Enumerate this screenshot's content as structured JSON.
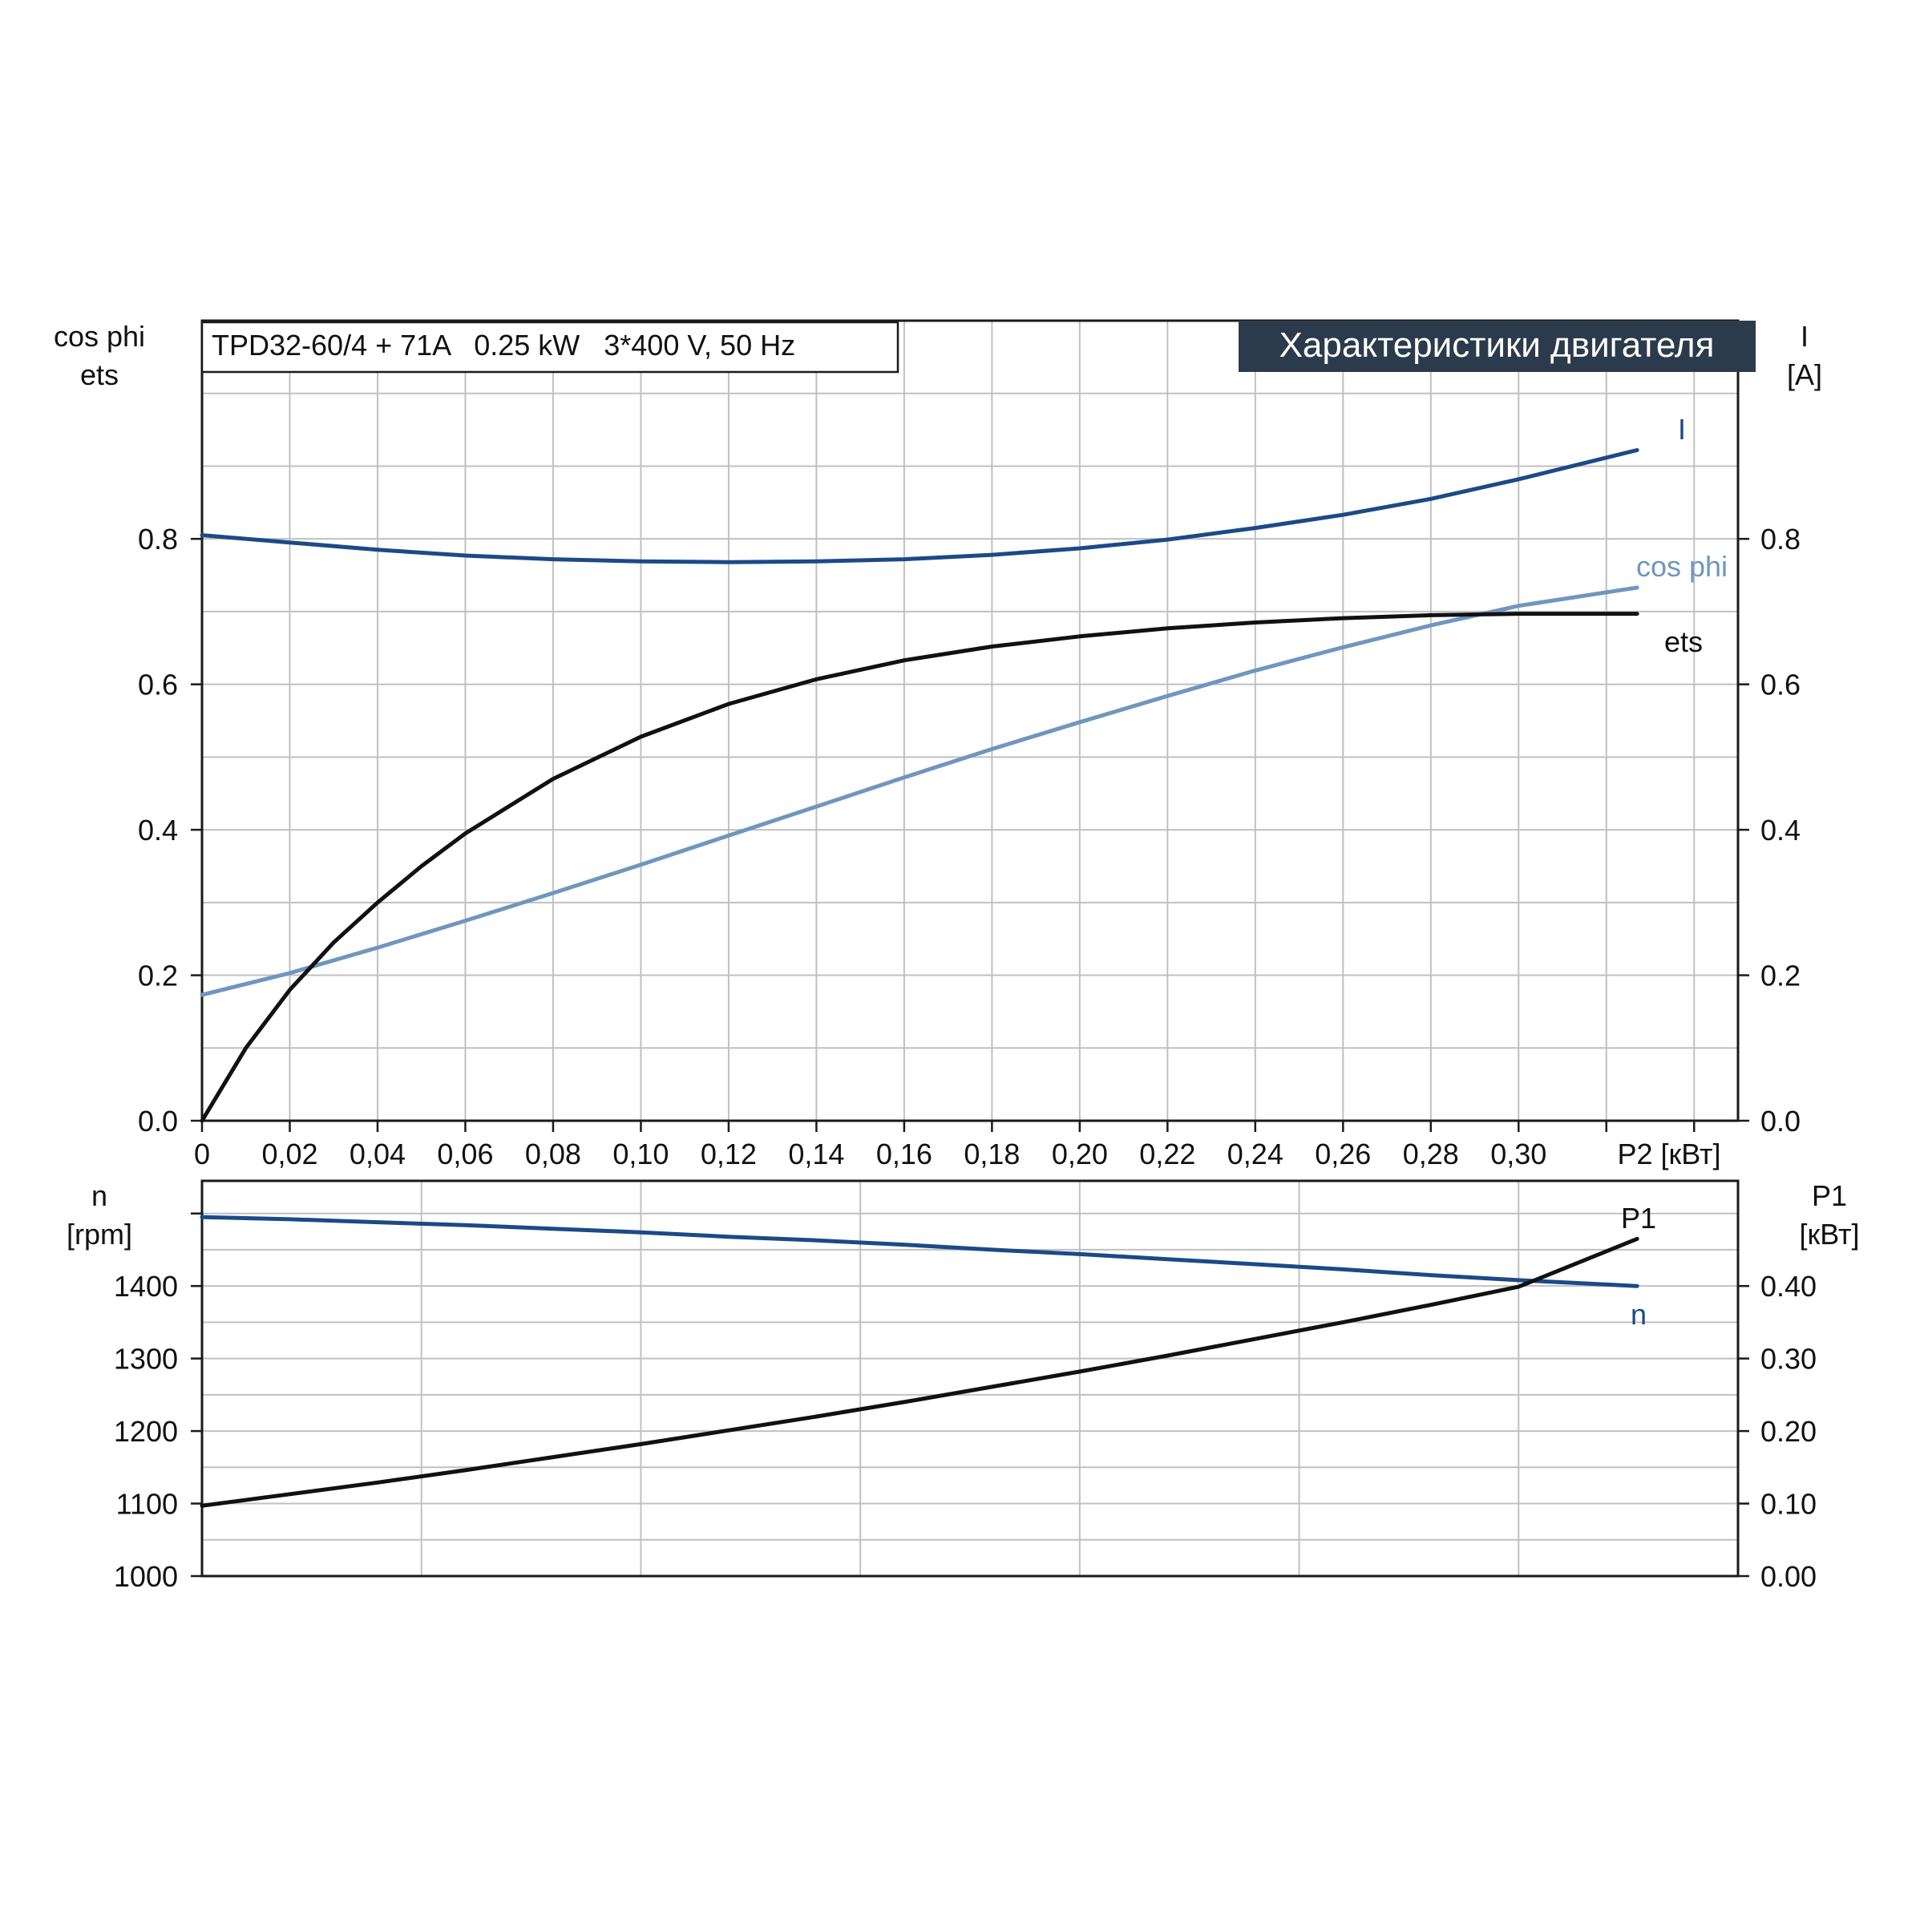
{
  "header": {
    "model_text": "TPD32-60/4 + 71A   0.25 kW   3*400 V, 50 Hz",
    "section_title": "Характеристики двигателя"
  },
  "colors": {
    "grid": "#c0c0c0",
    "frame": "#1a1a1a",
    "current": "#1b4a86",
    "cos_phi": "#6f96c0",
    "eta": "#111111",
    "speed": "#1b4a86",
    "p1": "#111111",
    "title_bg": "#2c3b4c",
    "title_fg": "#ffffff"
  },
  "chart_data": [
    {
      "type": "line",
      "name": "motor-characteristics-top",
      "x_ticks": [
        "0",
        "0,02",
        "0,04",
        "0,06",
        "0,08",
        "0,10",
        "0,12",
        "0,14",
        "0,16",
        "0,18",
        "0,20",
        "0,22",
        "0,24",
        "0,26",
        "0,28",
        "0,30"
      ],
      "x_tick_values": [
        0,
        0.02,
        0.04,
        0.06,
        0.08,
        0.1,
        0.12,
        0.14,
        0.16,
        0.18,
        0.2,
        0.22,
        0.24,
        0.26,
        0.28,
        0.3
      ],
      "xlabel": "P2 [кВт]",
      "xlim": [
        0,
        0.35
      ],
      "left_axis_label": [
        "cos phi",
        "ets"
      ],
      "right_axis_label": [
        "I",
        "[A]"
      ],
      "y_ticks": [
        "0.0",
        "0.2",
        "0.4",
        "0.6",
        "0.8"
      ],
      "y_tick_values": [
        0,
        0.2,
        0.4,
        0.6,
        0.8
      ],
      "ylim": [
        0,
        1.1
      ],
      "grid": true,
      "series": [
        {
          "name": "I",
          "color_key": "current",
          "x": [
            0,
            0.02,
            0.04,
            0.06,
            0.08,
            0.1,
            0.12,
            0.14,
            0.16,
            0.18,
            0.2,
            0.22,
            0.24,
            0.26,
            0.28,
            0.3,
            0.327
          ],
          "y": [
            0.805,
            0.795,
            0.785,
            0.777,
            0.772,
            0.769,
            0.768,
            0.769,
            0.772,
            0.778,
            0.787,
            0.799,
            0.815,
            0.833,
            0.855,
            0.882,
            0.922
          ]
        },
        {
          "name": "cos phi",
          "color_key": "cos_phi",
          "x": [
            0,
            0.02,
            0.04,
            0.06,
            0.08,
            0.1,
            0.12,
            0.14,
            0.16,
            0.18,
            0.2,
            0.22,
            0.24,
            0.26,
            0.28,
            0.3,
            0.327
          ],
          "y": [
            0.173,
            0.203,
            0.238,
            0.275,
            0.313,
            0.352,
            0.392,
            0.432,
            0.472,
            0.511,
            0.548,
            0.584,
            0.619,
            0.651,
            0.681,
            0.708,
            0.733
          ]
        },
        {
          "name": "ets",
          "color_key": "eta",
          "x": [
            0,
            0.01,
            0.02,
            0.03,
            0.04,
            0.05,
            0.06,
            0.08,
            0.1,
            0.12,
            0.14,
            0.16,
            0.18,
            0.2,
            0.22,
            0.24,
            0.26,
            0.28,
            0.3,
            0.327
          ],
          "y": [
            0,
            0.1,
            0.18,
            0.245,
            0.3,
            0.35,
            0.395,
            0.47,
            0.528,
            0.573,
            0.607,
            0.633,
            0.652,
            0.666,
            0.677,
            0.685,
            0.691,
            0.695,
            0.697,
            0.697
          ]
        }
      ]
    },
    {
      "type": "line",
      "name": "speed-and-input-power-bottom",
      "xlim": [
        0,
        0.35
      ],
      "left_axis_label": [
        "n",
        "[rpm]"
      ],
      "right_axis_label": [
        "P1",
        "[кВт]"
      ],
      "y_left_ticks": [
        "1000",
        "1100",
        "1200",
        "1300",
        "1400"
      ],
      "y_left_tick_values": [
        1000,
        1100,
        1200,
        1300,
        1400
      ],
      "y_left_lim": [
        1000,
        1545
      ],
      "y_right_ticks": [
        "0.00",
        "0.10",
        "0.20",
        "0.30",
        "0.40"
      ],
      "y_right_tick_values": [
        0,
        0.1,
        0.2,
        0.3,
        0.4
      ],
      "y_right_lim": [
        0,
        0.545
      ],
      "grid": true,
      "series": [
        {
          "name": "n",
          "color_key": "speed",
          "axis": "left",
          "x": [
            0,
            0.02,
            0.04,
            0.06,
            0.08,
            0.1,
            0.12,
            0.14,
            0.16,
            0.18,
            0.2,
            0.22,
            0.24,
            0.26,
            0.28,
            0.3,
            0.327
          ],
          "y": [
            1495,
            1492,
            1488,
            1484,
            1479,
            1474,
            1468,
            1463,
            1457,
            1450,
            1444,
            1437,
            1430,
            1423,
            1415,
            1408,
            1400
          ]
        },
        {
          "name": "P1",
          "color_key": "p1",
          "axis": "right",
          "x": [
            0,
            0.02,
            0.04,
            0.06,
            0.08,
            0.1,
            0.12,
            0.14,
            0.16,
            0.18,
            0.2,
            0.22,
            0.24,
            0.26,
            0.28,
            0.3,
            0.327
          ],
          "y": [
            0.097,
            0.113,
            0.129,
            0.146,
            0.164,
            0.182,
            0.201,
            0.22,
            0.24,
            0.261,
            0.282,
            0.304,
            0.327,
            0.35,
            0.374,
            0.399,
            0.465
          ]
        }
      ]
    }
  ]
}
